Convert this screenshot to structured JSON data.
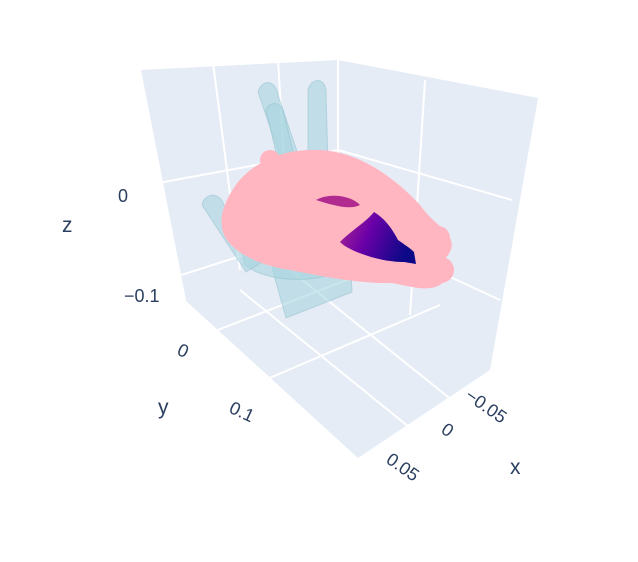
{
  "chart_data": {
    "type": "mesh3d-scatter3d",
    "scene": {
      "background_color": "#e5ecf6",
      "grid_color": "#ffffff",
      "tick_color": "#2a3f5f"
    },
    "axes": {
      "x": {
        "title": "x",
        "ticks": [
          "−0.05",
          "0",
          "0.05"
        ]
      },
      "y": {
        "title": "y",
        "ticks": [
          "0",
          "0.1"
        ]
      },
      "z": {
        "title": "z",
        "ticks": [
          "−0.1",
          "0"
        ]
      }
    },
    "series": [
      {
        "kind": "mesh",
        "color": "#a8d5df",
        "opacity": 0.55
      },
      {
        "kind": "point-cloud",
        "color": "#ffb6c1"
      },
      {
        "kind": "surface",
        "colorscale": [
          "#0d0887",
          "#6a00a8",
          "#b12a90"
        ]
      }
    ]
  }
}
